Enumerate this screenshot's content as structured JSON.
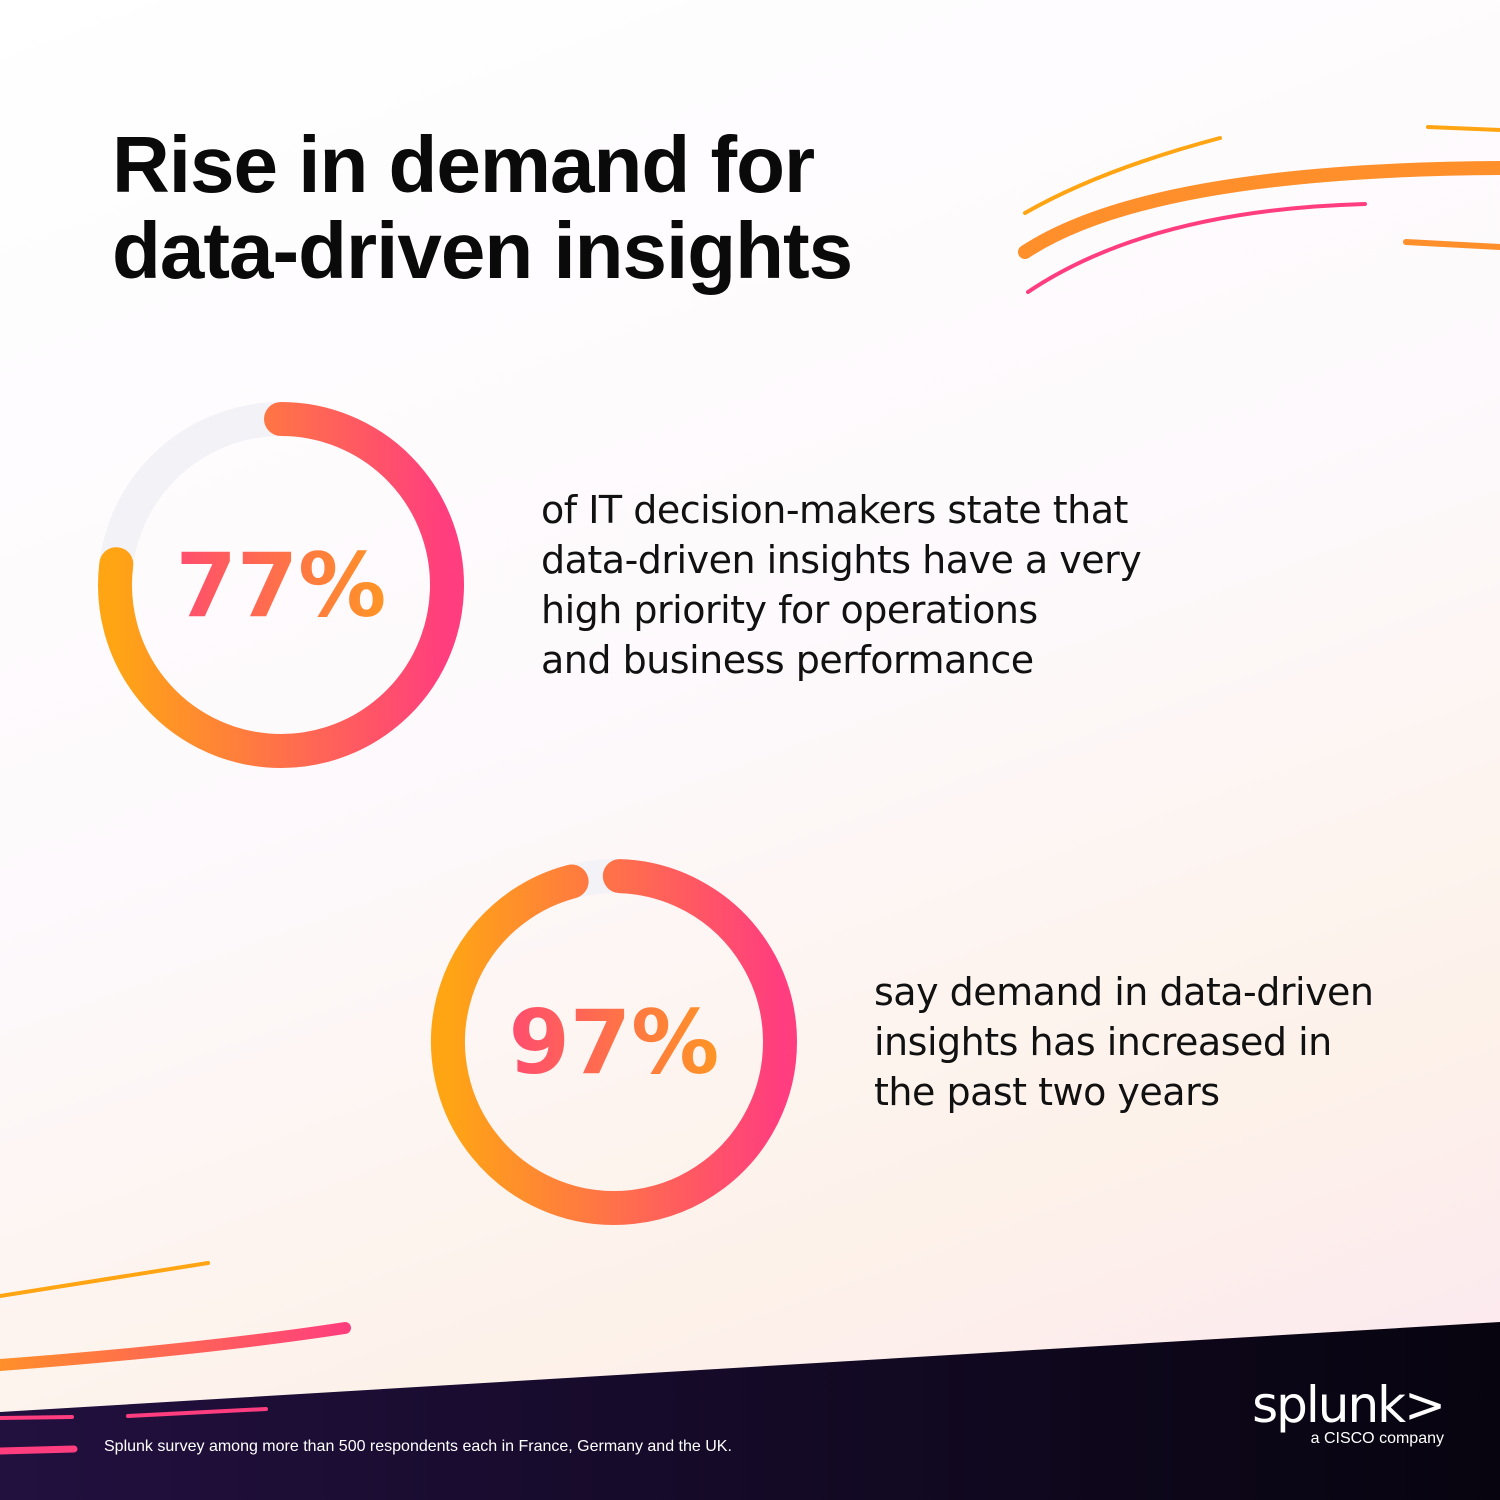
{
  "title": [
    "Rise in demand for",
    "data-driven insights"
  ],
  "chart_data": [
    {
      "type": "pie",
      "variant": "donut",
      "value": 77,
      "label": "77%",
      "description": [
        "of IT decision-makers state that",
        "data-driven insights have a very",
        "high priority for operations",
        "and business performance"
      ]
    },
    {
      "type": "pie",
      "variant": "donut",
      "value": 97,
      "label": "97%",
      "description": [
        "say demand in data-driven",
        "insights has increased in",
        "the past two years"
      ]
    }
  ],
  "colors": {
    "gradient_start": "#FFA514",
    "gradient_end": "#FF3D7F",
    "track": "#F3F2F7",
    "footer": "#1a0c33"
  },
  "footnote": "Splunk survey among more than 500 respondents each in France, Germany and the UK.",
  "logo": {
    "wordmark": "splunk>",
    "tagline": "a CISCO company"
  }
}
